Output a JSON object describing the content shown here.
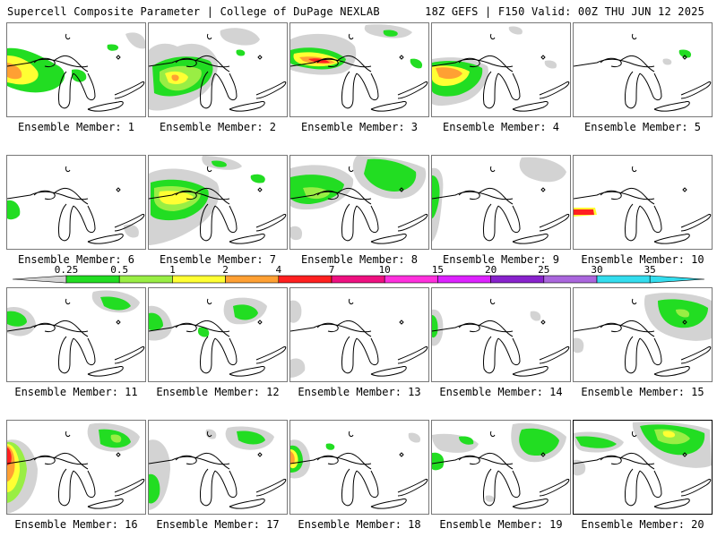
{
  "header": {
    "left": "Supercell Composite Parameter | College of DuPage NEXLAB",
    "right": "18Z GEFS | F150 Valid: 00Z THU JUN 12 2025"
  },
  "colorbar": {
    "labels": [
      "0.25",
      "0.5",
      "1",
      "2",
      "4",
      "7",
      "10",
      "15",
      "20",
      "25",
      "30",
      "35"
    ],
    "colors": [
      "#d3d3d3",
      "#22dd22",
      "#99ee44",
      "#ffff33",
      "#ffa033",
      "#ff2020",
      "#ee1080",
      "#ff30dd",
      "#dd22ff",
      "#8822cc",
      "#aa66dd",
      "#33ddee"
    ]
  },
  "map": {
    "land_outline": "#000000",
    "panel_border": "#777777"
  },
  "members": [
    {
      "label": "Ensemble Member: 1",
      "selected": false
    },
    {
      "label": "Ensemble Member: 2",
      "selected": false
    },
    {
      "label": "Ensemble Member: 3",
      "selected": false
    },
    {
      "label": "Ensemble Member: 4",
      "selected": false
    },
    {
      "label": "Ensemble Member: 5",
      "selected": false
    },
    {
      "label": "Ensemble Member: 6",
      "selected": false
    },
    {
      "label": "Ensemble Member: 7",
      "selected": false
    },
    {
      "label": "Ensemble Member: 8",
      "selected": false
    },
    {
      "label": "Ensemble Member: 9",
      "selected": false
    },
    {
      "label": "Ensemble Member: 10",
      "selected": false
    },
    {
      "label": "Ensemble Member: 11",
      "selected": false
    },
    {
      "label": "Ensemble Member: 12",
      "selected": false
    },
    {
      "label": "Ensemble Member: 13",
      "selected": false
    },
    {
      "label": "Ensemble Member: 14",
      "selected": false
    },
    {
      "label": "Ensemble Member: 15",
      "selected": false
    },
    {
      "label": "Ensemble Member: 16",
      "selected": false
    },
    {
      "label": "Ensemble Member: 17",
      "selected": false
    },
    {
      "label": "Ensemble Member: 18",
      "selected": false
    },
    {
      "label": "Ensemble Member: 19",
      "selected": false
    },
    {
      "label": "Ensemble Member: 20",
      "selected": true
    }
  ]
}
